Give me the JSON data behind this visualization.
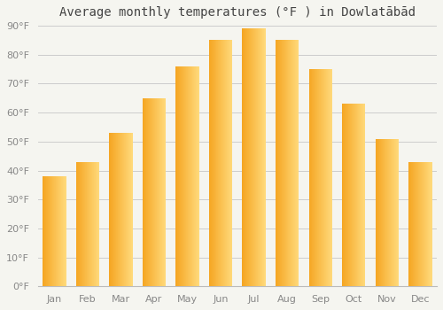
{
  "title": "Average monthly temperatures (°F ) in Dowlatābād",
  "months": [
    "Jan",
    "Feb",
    "Mar",
    "Apr",
    "May",
    "Jun",
    "Jul",
    "Aug",
    "Sep",
    "Oct",
    "Nov",
    "Dec"
  ],
  "values": [
    38,
    43,
    53,
    65,
    76,
    85,
    89,
    85,
    75,
    63,
    51,
    43
  ],
  "ylim": [
    0,
    90
  ],
  "yticks": [
    0,
    10,
    20,
    30,
    40,
    50,
    60,
    70,
    80,
    90
  ],
  "ytick_labels": [
    "0°F",
    "10°F",
    "20°F",
    "30°F",
    "40°F",
    "50°F",
    "60°F",
    "70°F",
    "80°F",
    "90°F"
  ],
  "bar_color_left": "#F5A623",
  "bar_color_right": "#FFD97A",
  "background_color": "#F5F5F0",
  "plot_bg_color": "#F5F5F0",
  "grid_color": "#CCCCCC",
  "title_fontsize": 10,
  "tick_fontsize": 8,
  "bar_width": 0.7
}
